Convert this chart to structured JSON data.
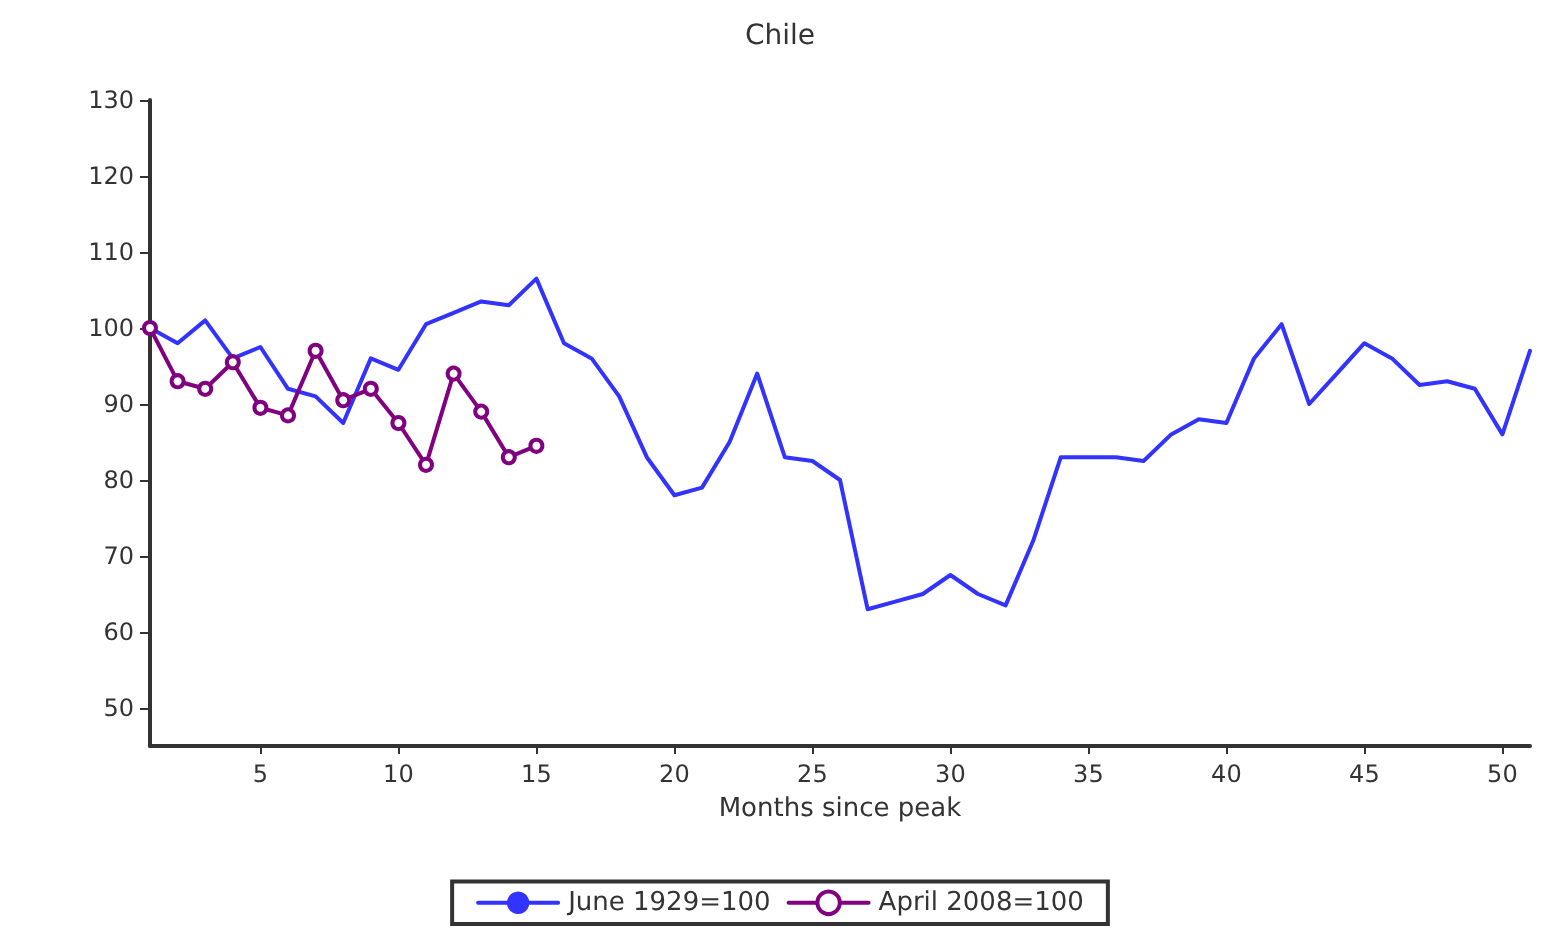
{
  "chart_data": {
    "type": "line",
    "title": "Chile",
    "xlabel": "Months since peak",
    "x": [
      1,
      2,
      3,
      4,
      5,
      6,
      7,
      8,
      9,
      10,
      11,
      12,
      13,
      14,
      15,
      16,
      17,
      18,
      19,
      20,
      21,
      22,
      23,
      24,
      25,
      26,
      27,
      28,
      29,
      30,
      31,
      32,
      33,
      34,
      35,
      36,
      37,
      38,
      39,
      40,
      41,
      42,
      43,
      44,
      45,
      46,
      47,
      48,
      49,
      50,
      51
    ],
    "series": [
      {
        "name": "June 1929=100",
        "color": "#3333ff",
        "marker": "none",
        "values": [
          100,
          98,
          101,
          96,
          97.5,
          92,
          91,
          87.5,
          96,
          94.5,
          100.5,
          102,
          103.5,
          103,
          106.5,
          98,
          96,
          91,
          83,
          78,
          79,
          85,
          94,
          83,
          82.5,
          80,
          63,
          64,
          65,
          67.5,
          65,
          63.5,
          72,
          83,
          83,
          83,
          82.5,
          86,
          88,
          87.5,
          96,
          100.5,
          90,
          94,
          98,
          96,
          92.5,
          93,
          92,
          86,
          97
        ]
      },
      {
        "name": "April 2008=100",
        "color": "#800080",
        "marker": "circle",
        "x": [
          1,
          2,
          3,
          4,
          5,
          6,
          7,
          8,
          9,
          10,
          11,
          12,
          13,
          14,
          15
        ],
        "values": [
          100,
          93,
          92,
          95.5,
          89.5,
          88.5,
          97,
          90.5,
          92,
          87.5,
          82,
          94,
          89,
          83,
          84.5
        ]
      }
    ],
    "xlim": [
      1,
      51
    ],
    "xticks": [
      5,
      10,
      15,
      20,
      25,
      30,
      35,
      40,
      45,
      50
    ],
    "ylim": [
      45,
      130
    ],
    "yticks": [
      50,
      60,
      70,
      80,
      90,
      100,
      110,
      120,
      130
    ],
    "grid": false,
    "legend": "bottom",
    "line_style": "solid"
  }
}
